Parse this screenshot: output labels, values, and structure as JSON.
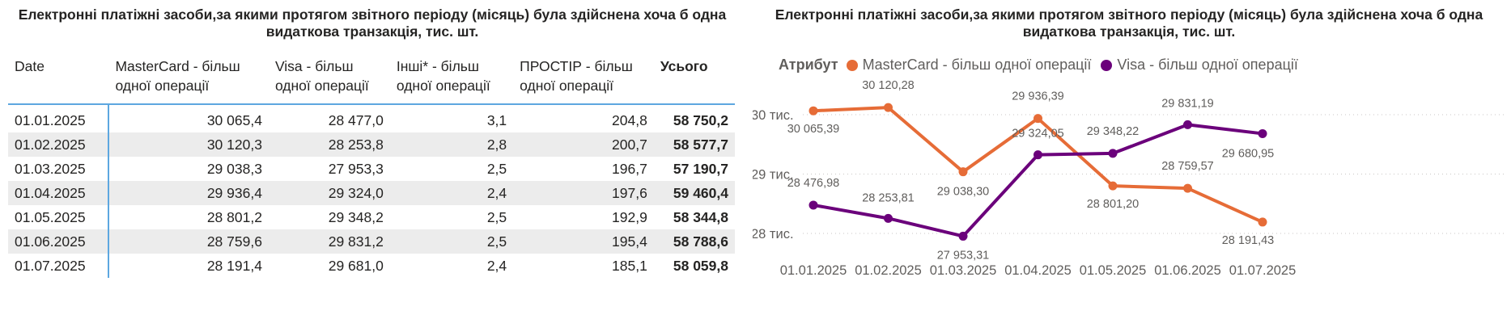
{
  "table": {
    "title": "Електронні платіжні засоби,за якими протягом звітного періоду (місяць) була здійснена хоча б одна видаткова транзакція, тис. шт.",
    "headers": [
      "Date",
      "MasterCard - більш одної операції",
      "Visa - більш одної операції",
      "Інші* - більш одної операції",
      "ПРОСТІР - більш одної операції",
      "Усього"
    ],
    "rows": [
      [
        "01.01.2025",
        "30 065,4",
        "28 477,0",
        "3,1",
        "204,8",
        "58 750,2"
      ],
      [
        "01.02.2025",
        "30 120,3",
        "28 253,8",
        "2,8",
        "200,7",
        "58 577,7"
      ],
      [
        "01.03.2025",
        "29 038,3",
        "27 953,3",
        "2,5",
        "196,7",
        "57 190,7"
      ],
      [
        "01.04.2025",
        "29 936,4",
        "29 324,0",
        "2,4",
        "197,6",
        "59 460,4"
      ],
      [
        "01.05.2025",
        "28 801,2",
        "29 348,2",
        "2,5",
        "192,9",
        "58 344,8"
      ],
      [
        "01.06.2025",
        "28 759,6",
        "29 831,2",
        "2,5",
        "195,4",
        "58 788,6"
      ],
      [
        "01.07.2025",
        "28 191,4",
        "29 681,0",
        "2,4",
        "185,1",
        "58 059,8"
      ]
    ]
  },
  "chart_data": {
    "type": "line",
    "title": "Електронні платіжні засоби,за якими протягом звітного періоду (місяць) була здійснена хоча б одна видаткова транзакція, тис. шт.",
    "legend_title": "Атрибут",
    "legend_position": "top-left",
    "x": [
      "01.01.2025",
      "01.02.2025",
      "01.03.2025",
      "01.04.2025",
      "01.05.2025",
      "01.06.2025",
      "01.07.2025"
    ],
    "y_ticks": [
      {
        "value": 28000,
        "label": "28 тис."
      },
      {
        "value": 29000,
        "label": "29 тис."
      },
      {
        "value": 30000,
        "label": "30 тис."
      }
    ],
    "ylim": [
      27700,
      30400
    ],
    "grid": true,
    "series": [
      {
        "name": "MasterCard - більш одної операції",
        "color": "#e66c37",
        "values": [
          30065.39,
          30120.28,
          29038.3,
          29936.39,
          28801.2,
          28759.57,
          28191.43
        ],
        "labels": [
          "30 065,39",
          "30 120,28",
          "29 038,30",
          "29 936,39",
          "28 801,20",
          "28 759,57",
          "28 191,43"
        ]
      },
      {
        "name": "Visa - більш одної операції",
        "color": "#6b007b",
        "values": [
          28476.98,
          28253.81,
          27953.31,
          29324.05,
          29348.22,
          29831.19,
          29680.95
        ],
        "labels": [
          "28 476,98",
          "28 253,81",
          "27 953,31",
          "29 324,05",
          "29 348,22",
          "29 831,19",
          "29 680,95"
        ]
      }
    ]
  }
}
